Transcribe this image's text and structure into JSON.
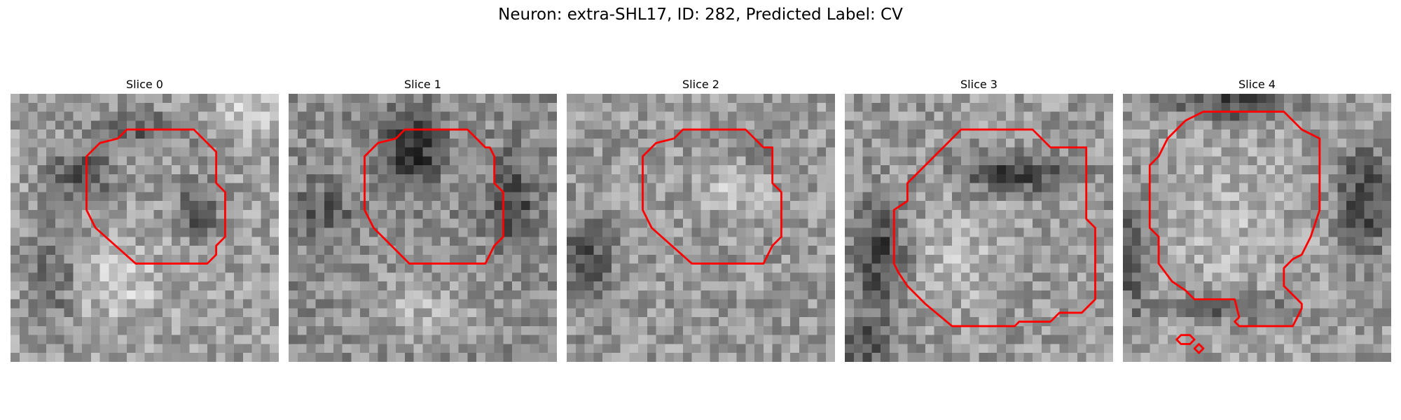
{
  "figure": {
    "title": "Neuron: extra-SHL17, ID: 282, Predicted Label: CV",
    "contour_color": "#ff0000",
    "colormap": "gray"
  },
  "slices": [
    {
      "title": "Slice 0"
    },
    {
      "title": "Slice 1"
    },
    {
      "title": "Slice 2"
    },
    {
      "title": "Slice 3"
    },
    {
      "title": "Slice 4"
    }
  ]
}
